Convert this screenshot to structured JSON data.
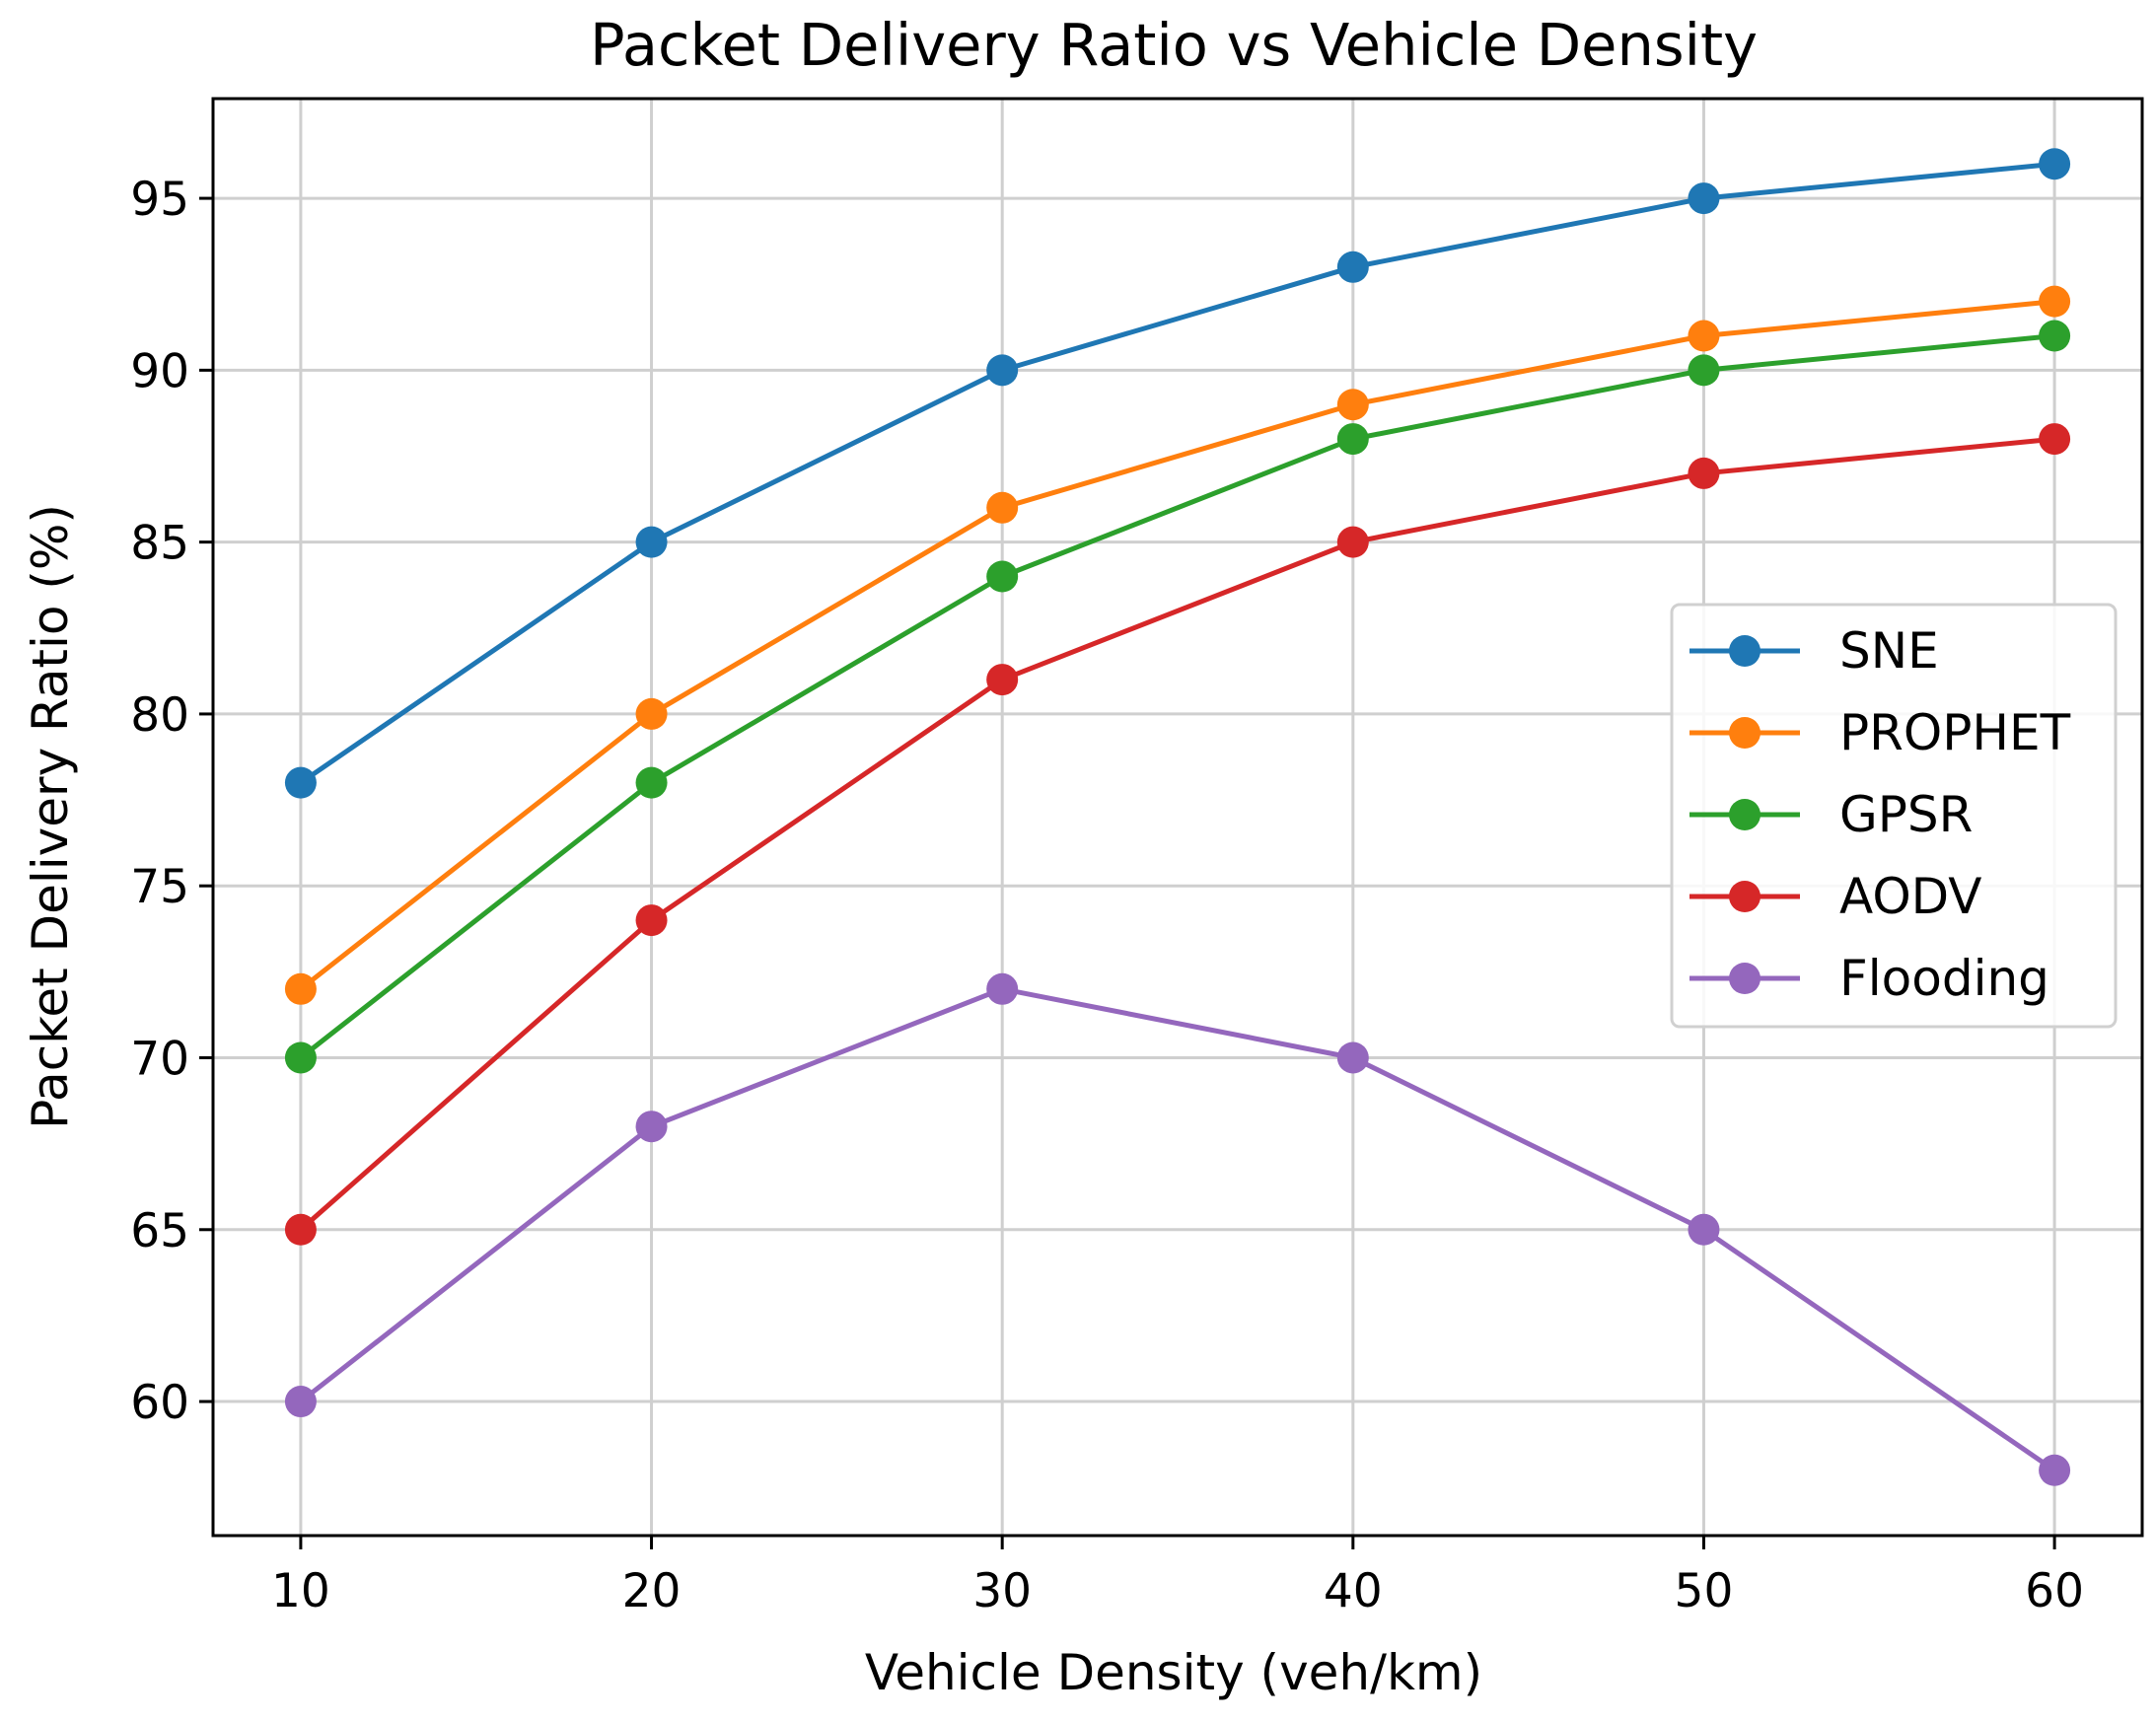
{
  "chart_data": {
    "type": "line",
    "title": "Packet Delivery Ratio vs Vehicle Density",
    "xlabel": "Vehicle Density (veh/km)",
    "ylabel": "Packet Delivery Ratio (%)",
    "x": [
      10,
      20,
      30,
      40,
      50,
      60
    ],
    "xticks": [
      10,
      20,
      30,
      40,
      50,
      60
    ],
    "yticks": [
      60,
      65,
      70,
      75,
      80,
      85,
      90,
      95
    ],
    "xlim": [
      7.5,
      62.5
    ],
    "ylim": [
      56.1,
      97.9
    ],
    "grid": true,
    "legend_position": "center-right",
    "marker": "circle",
    "series": [
      {
        "name": "SNE",
        "color": "#1f77b4",
        "values": [
          78,
          85,
          90,
          93,
          95,
          96
        ]
      },
      {
        "name": "PROPHET",
        "color": "#ff7f0e",
        "values": [
          72,
          80,
          86,
          89,
          91,
          92
        ]
      },
      {
        "name": "GPSR",
        "color": "#2ca02c",
        "values": [
          70,
          78,
          84,
          88,
          90,
          91
        ]
      },
      {
        "name": "AODV",
        "color": "#d62728",
        "values": [
          65,
          74,
          81,
          85,
          87,
          88
        ]
      },
      {
        "name": "Flooding",
        "color": "#9467bd",
        "values": [
          60,
          68,
          72,
          70,
          65,
          58
        ]
      }
    ]
  }
}
